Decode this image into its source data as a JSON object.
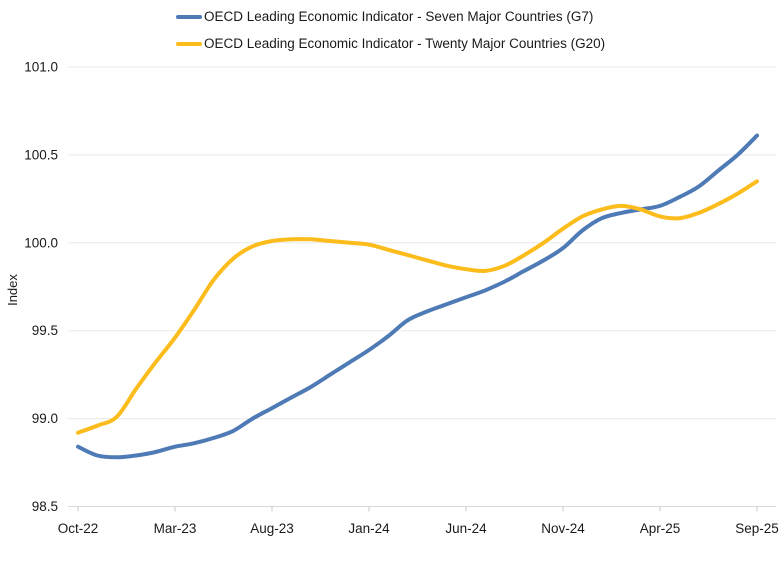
{
  "chart_data": {
    "type": "line",
    "x": [
      "Oct-22",
      "Nov-22",
      "Dec-22",
      "Jan-23",
      "Feb-23",
      "Mar-23",
      "Apr-23",
      "May-23",
      "Jun-23",
      "Jul-23",
      "Aug-23",
      "Sep-23",
      "Oct-23",
      "Nov-23",
      "Dec-23",
      "Jan-24",
      "Feb-24",
      "Mar-24",
      "Apr-24",
      "May-24",
      "Jun-24",
      "Jul-24",
      "Aug-24",
      "Sep-24",
      "Oct-24",
      "Nov-24",
      "Dec-24",
      "Jan-25",
      "Feb-25",
      "Mar-25",
      "Apr-25",
      "May-25",
      "Jun-25",
      "Jul-25",
      "Aug-25",
      "Sep-25"
    ],
    "series": [
      {
        "name": "OECD Leading Economic Indicator - Seven Major Countries (G7)",
        "color": "#4e7ab5",
        "values": [
          98.84,
          98.79,
          98.78,
          98.79,
          98.81,
          98.84,
          98.86,
          98.89,
          98.93,
          99.0,
          99.06,
          99.12,
          99.18,
          99.25,
          99.32,
          99.39,
          99.47,
          99.56,
          99.61,
          99.65,
          99.69,
          99.73,
          99.78,
          99.84,
          99.9,
          99.97,
          100.07,
          100.14,
          100.17,
          100.19,
          100.21,
          100.26,
          100.32,
          100.41,
          100.5,
          100.61
        ]
      },
      {
        "name": "OECD Leading Economic Indicator - Twenty Major Countries (G20)",
        "color": "#fbbc1c",
        "values": [
          98.92,
          98.96,
          99.01,
          99.17,
          99.32,
          99.46,
          99.62,
          99.79,
          99.91,
          99.98,
          100.01,
          100.02,
          100.02,
          100.01,
          100.0,
          99.99,
          99.96,
          99.93,
          99.9,
          99.87,
          99.85,
          99.84,
          99.87,
          99.93,
          100.0,
          100.08,
          100.15,
          100.19,
          100.21,
          100.19,
          100.15,
          100.14,
          100.17,
          100.22,
          100.28,
          100.35
        ]
      }
    ],
    "title": "",
    "xlabel": "",
    "ylabel": "Index",
    "ylim": [
      98.5,
      101.0
    ],
    "yticks": [
      98.5,
      99.0,
      99.5,
      100.0,
      100.5,
      101.0
    ],
    "ytick_labels": [
      "98.5",
      "99.0",
      "99.5",
      "100.0",
      "100.5",
      "101.0"
    ],
    "xtick_labels": [
      "Oct-22",
      "Mar-23",
      "Aug-23",
      "Jan-24",
      "Jun-24",
      "Nov-24",
      "Apr-25",
      "Sep-25"
    ],
    "xtick_month_indices": [
      0,
      5,
      10,
      15,
      20,
      25,
      30,
      35
    ],
    "grid": "horizontal",
    "legend_position": "top",
    "colors": {
      "gridline": "#eaeaea",
      "axis_line": "#d9d9d9",
      "tick_mark": "#c9c9c9",
      "text": "#1a1a1a",
      "background": "#ffffff"
    }
  }
}
